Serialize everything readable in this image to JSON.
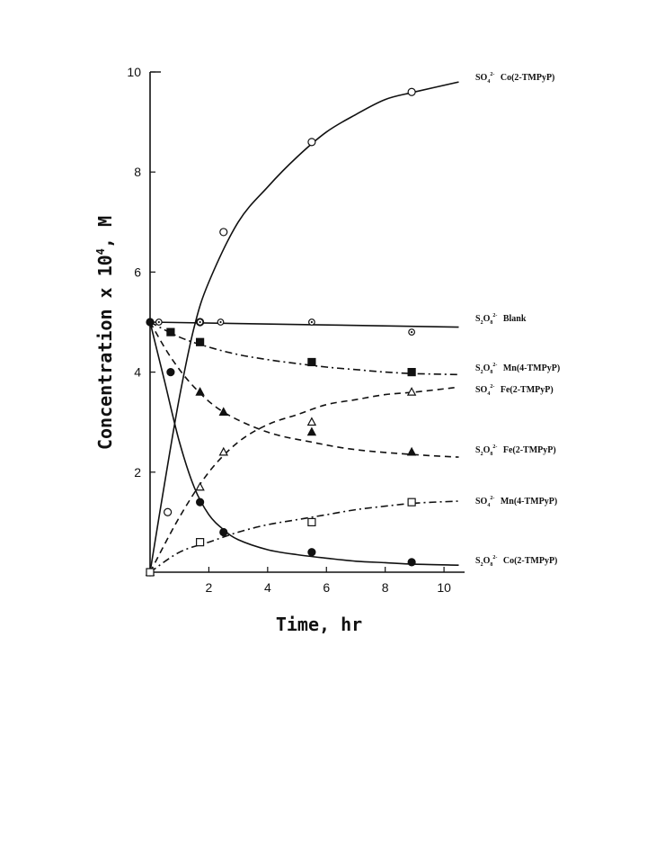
{
  "chart_data": {
    "type": "scatter",
    "xlabel": "Time, hr",
    "ylabel": "Concentration x 10",
    "ylabel_exp": "4",
    "ylabel_unit": ", M",
    "xlim": [
      0,
      10.7
    ],
    "ylim": [
      0,
      10
    ],
    "xticks": [
      2,
      4,
      6,
      8,
      10
    ],
    "yticks": [
      2,
      4,
      6,
      8,
      10
    ],
    "grid": false,
    "legend": "labels at right end of each curve",
    "series": [
      {
        "name": "SO4 2- Co(2-TMPyP)",
        "label_species": "SO",
        "label_sub": "4",
        "label_sup": "2-",
        "label_complex": "Co(2-TMPyP)",
        "marker": "open-circle",
        "line": "solid",
        "points": [
          [
            0,
            0
          ],
          [
            0.6,
            1.2
          ],
          [
            1.7,
            5.0
          ],
          [
            2.5,
            6.8
          ],
          [
            5.5,
            8.6
          ],
          [
            8.9,
            9.6
          ]
        ],
        "curve": [
          [
            0,
            0
          ],
          [
            0.5,
            1.8
          ],
          [
            1,
            3.5
          ],
          [
            1.5,
            4.9
          ],
          [
            2,
            5.8
          ],
          [
            3,
            7.0
          ],
          [
            4,
            7.7
          ],
          [
            5,
            8.3
          ],
          [
            6,
            8.8
          ],
          [
            7,
            9.15
          ],
          [
            8,
            9.45
          ],
          [
            9,
            9.6
          ],
          [
            10.5,
            9.8
          ]
        ]
      },
      {
        "name": "S2O8 2- Blank",
        "label_species": "S",
        "label_sub": "2",
        "label_species2": "O",
        "label_sub2": "8",
        "label_sup": "2-",
        "label_complex": "Blank",
        "marker": "circle-dot",
        "line": "solid",
        "points": [
          [
            0.3,
            5.0
          ],
          [
            1.7,
            5.0
          ],
          [
            2.4,
            5.0
          ],
          [
            5.5,
            5.0
          ],
          [
            8.9,
            4.8
          ]
        ],
        "curve": [
          [
            0,
            5.0
          ],
          [
            10.5,
            4.9
          ]
        ]
      },
      {
        "name": "S2O8 2- Mn(4-TMPyP)",
        "label_species": "S",
        "label_sub": "2",
        "label_species2": "O",
        "label_sub2": "8",
        "label_sup": "2-",
        "label_complex": "Mn(4-TMPyP)",
        "marker": "filled-square",
        "line": "dash-dot",
        "points": [
          [
            0.7,
            4.8
          ],
          [
            1.7,
            4.6
          ],
          [
            5.5,
            4.2
          ],
          [
            8.9,
            4.0
          ]
        ],
        "curve": [
          [
            0,
            5.0
          ],
          [
            1,
            4.7
          ],
          [
            2,
            4.5
          ],
          [
            3,
            4.35
          ],
          [
            4,
            4.25
          ],
          [
            5,
            4.17
          ],
          [
            6,
            4.1
          ],
          [
            7,
            4.05
          ],
          [
            8,
            4.0
          ],
          [
            9,
            3.97
          ],
          [
            10.5,
            3.95
          ]
        ]
      },
      {
        "name": "SO4 2- Fe(2-TMPyP)",
        "label_species": "SO",
        "label_sub": "4",
        "label_sup": "2-",
        "label_complex": "Fe(2-TMPyP)",
        "marker": "open-triangle",
        "line": "dashed",
        "points": [
          [
            0,
            0
          ],
          [
            1.7,
            1.7
          ],
          [
            2.5,
            2.4
          ],
          [
            5.5,
            3.0
          ],
          [
            8.9,
            3.6
          ]
        ],
        "curve": [
          [
            0,
            0
          ],
          [
            1,
            1.1
          ],
          [
            2,
            2.0
          ],
          [
            3,
            2.6
          ],
          [
            4,
            2.95
          ],
          [
            5,
            3.15
          ],
          [
            6,
            3.35
          ],
          [
            7,
            3.45
          ],
          [
            8,
            3.55
          ],
          [
            9,
            3.6
          ],
          [
            10.5,
            3.7
          ]
        ]
      },
      {
        "name": "S2O8 2- Fe(2-TMPyP)",
        "label_species": "S",
        "label_sub": "2",
        "label_species2": "O",
        "label_sub2": "8",
        "label_sup": "2-",
        "label_complex": "Fe(2-TMPyP)",
        "marker": "filled-triangle",
        "line": "dashed",
        "points": [
          [
            1.7,
            3.6
          ],
          [
            2.5,
            3.2
          ],
          [
            5.5,
            2.8
          ],
          [
            8.9,
            2.4
          ]
        ],
        "curve": [
          [
            0,
            5.0
          ],
          [
            0.7,
            4.3
          ],
          [
            1.5,
            3.7
          ],
          [
            2.5,
            3.2
          ],
          [
            4,
            2.8
          ],
          [
            5.5,
            2.6
          ],
          [
            7,
            2.45
          ],
          [
            9,
            2.35
          ],
          [
            10.5,
            2.3
          ]
        ]
      },
      {
        "name": "SO4 2- Mn(4-TMPyP)",
        "label_species": "SO",
        "label_sub": "4",
        "label_sup": "2-",
        "label_complex": "Mn(4-TMPyP)",
        "marker": "open-square",
        "line": "dash-dot",
        "points": [
          [
            0,
            0
          ],
          [
            1.7,
            0.6
          ],
          [
            5.5,
            1.0
          ],
          [
            8.9,
            1.4
          ]
        ],
        "curve": [
          [
            0,
            0
          ],
          [
            1,
            0.4
          ],
          [
            2,
            0.6
          ],
          [
            3,
            0.8
          ],
          [
            4,
            0.95
          ],
          [
            5,
            1.05
          ],
          [
            6,
            1.15
          ],
          [
            7,
            1.25
          ],
          [
            8,
            1.32
          ],
          [
            9,
            1.38
          ],
          [
            10.5,
            1.42
          ]
        ]
      },
      {
        "name": "S2O8 2- Co(2-TMPyP)",
        "label_species": "S",
        "label_sub": "2",
        "label_species2": "O",
        "label_sub2": "8",
        "label_sup": "2-",
        "label_complex": "Co(2-TMPyP)",
        "marker": "filled-circle",
        "line": "solid",
        "points": [
          [
            0,
            5.0
          ],
          [
            0.7,
            4.0
          ],
          [
            1.7,
            1.4
          ],
          [
            2.5,
            0.8
          ],
          [
            5.5,
            0.4
          ],
          [
            8.9,
            0.2
          ]
        ],
        "curve": [
          [
            0,
            5.0
          ],
          [
            0.5,
            3.8
          ],
          [
            1,
            2.6
          ],
          [
            1.5,
            1.7
          ],
          [
            2,
            1.15
          ],
          [
            2.5,
            0.85
          ],
          [
            3,
            0.65
          ],
          [
            4,
            0.45
          ],
          [
            5,
            0.35
          ],
          [
            6,
            0.28
          ],
          [
            7,
            0.22
          ],
          [
            8,
            0.19
          ],
          [
            9,
            0.16
          ],
          [
            10.5,
            0.14
          ]
        ]
      }
    ]
  }
}
